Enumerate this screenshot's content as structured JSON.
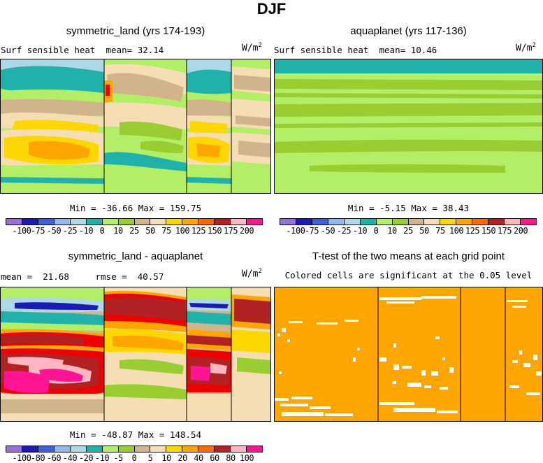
{
  "title": "DJF",
  "palette": {
    "purple": "#9370db",
    "darkblue": "#1a1ab4",
    "blue": "#3a63d8",
    "lightblue": "#8fb8ee",
    "skyblue": "#add8e6",
    "teal": "#20b2aa",
    "lightgreen": "#b3ee67",
    "green": "#9acd32",
    "tan": "#d2b48c",
    "wheat": "#f5deb3",
    "yellow": "#ffd700",
    "orange": "#ffa500",
    "darkorange": "#ff6a00",
    "red": "#ee0000",
    "darkred": "#b22222",
    "pink": "#ffb6c1",
    "magenta": "#ff1493",
    "sigorange": "#ffa500"
  },
  "chart_data": [
    {
      "type": "heatmap",
      "title": "symmetric_land (yrs 174-193)",
      "variable": "Surf sensible heat",
      "mean_label": "mean=",
      "mean": "32.14",
      "units": "W/m",
      "units_exp": "2",
      "min_label": "Min =",
      "min": "-36.66",
      "max_label": "Max =",
      "max": "159.75",
      "levels": [
        "-100",
        "-75",
        "-50",
        "-25",
        "-10",
        "0",
        "10",
        "25",
        "50",
        "75",
        "100",
        "125",
        "150",
        "175",
        "200"
      ]
    },
    {
      "type": "heatmap",
      "title": "aquaplanet (yrs 117-136)",
      "variable": "Surf sensible heat",
      "mean_label": "mean=",
      "mean": "10.46",
      "units": "W/m",
      "units_exp": "2",
      "min_label": "Min =",
      "min": "-5.15",
      "max_label": "Max =",
      "max": "38.43",
      "levels": [
        "-100",
        "-75",
        "-50",
        "-25",
        "-10",
        "0",
        "10",
        "25",
        "50",
        "75",
        "100",
        "125",
        "150",
        "175",
        "200"
      ]
    },
    {
      "type": "heatmap",
      "title": "symmetric_land - aquaplanet",
      "mean_label": "mean =",
      "mean": "21.68",
      "rmse_label": "rmse =",
      "rmse": "40.57",
      "units": "W/m",
      "units_exp": "2",
      "min_label": "Min =",
      "min": "-48.87",
      "max_label": "Max =",
      "max": "148.54",
      "levels": [
        "-100",
        "-80",
        "-60",
        "-40",
        "-20",
        "-10",
        "-5",
        "0",
        "5",
        "10",
        "20",
        "40",
        "60",
        "80",
        "100"
      ]
    },
    {
      "type": "heatmap",
      "title": "T-test of the two means at each grid point",
      "subtitle": "Colored cells are significant at the 0.05 level"
    }
  ]
}
